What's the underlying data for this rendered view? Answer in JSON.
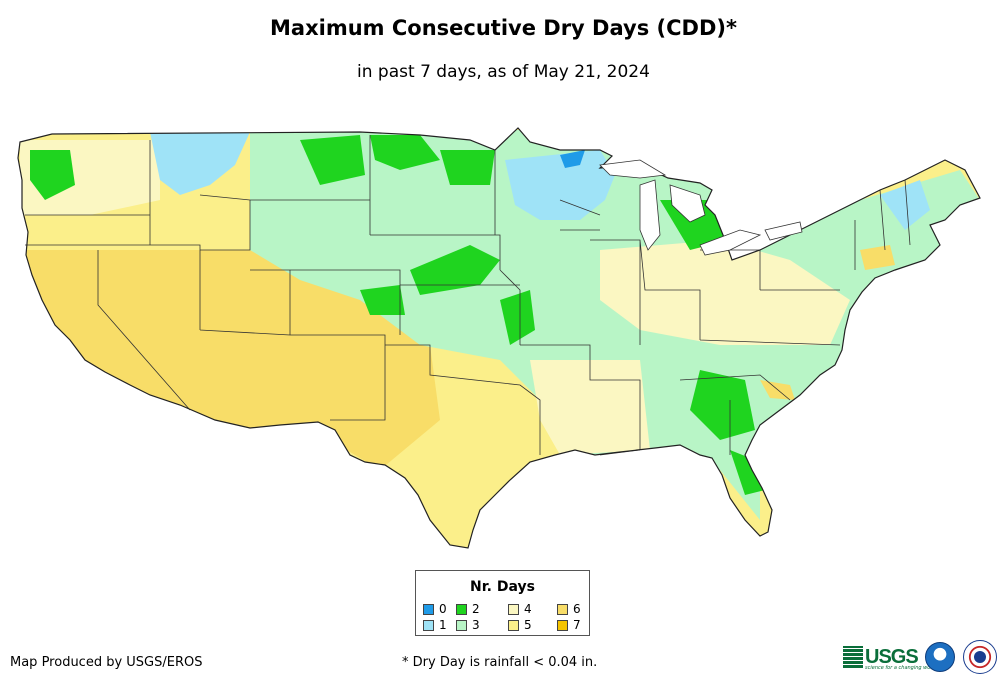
{
  "title": "Maximum Consecutive Dry Days (CDD)*",
  "subtitle": "in past 7 days, as of May 21, 2024",
  "legend": {
    "title": "Nr. Days",
    "items": [
      {
        "label": "0",
        "color": "#1f9be8"
      },
      {
        "label": "1",
        "color": "#9fe3f7"
      },
      {
        "label": "2",
        "color": "#1fd41f"
      },
      {
        "label": "3",
        "color": "#b8f5c6"
      },
      {
        "label": "4",
        "color": "#fbf7c2"
      },
      {
        "label": "5",
        "color": "#fbef8a"
      },
      {
        "label": "6",
        "color": "#f8dd68"
      },
      {
        "label": "7",
        "color": "#f5c400"
      }
    ]
  },
  "footer": {
    "credit": "Map Produced by USGS/EROS",
    "footnote": "* Dry Day is rainfall < 0.04 in.",
    "usgs_logo_text": "USGS",
    "usgs_tagline": "science for a changing world",
    "noaa_logo": "noaa-logo",
    "nws_logo": "nws-logo"
  }
}
